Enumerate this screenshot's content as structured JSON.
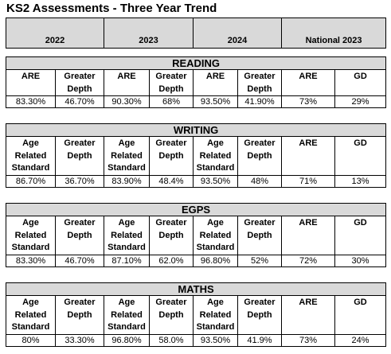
{
  "header": {
    "title": "KS2 Assessments - Three Year Trend",
    "columns": [
      "2022",
      "2023",
      "2024",
      "National 2023"
    ]
  },
  "sections": [
    {
      "title": "READING",
      "headers": [
        "ARE",
        "Greater Depth",
        "ARE",
        "Greater Depth",
        "ARE",
        "Greater Depth",
        "ARE",
        "GD"
      ],
      "values": [
        "83.30%",
        "46.70%",
        "90.30%",
        "68%",
        "93.50%",
        "41.90%",
        "73%",
        "29%"
      ]
    },
    {
      "title": "WRITING",
      "headers": [
        "Age Related Standard",
        "Greater Depth",
        "Age Related Standard",
        "Greater Depth",
        "Age Related Standard",
        "Greater Depth",
        "ARE",
        "GD"
      ],
      "values": [
        "86.70%",
        "36.70%",
        "83.90%",
        "48.4%",
        "93.50%",
        "48%",
        "71%",
        "13%"
      ]
    },
    {
      "title": "EGPS",
      "headers": [
        "Age Related Standard",
        "Greater Depth",
        "Age Related Standard",
        "Greater Depth",
        "Age Related Standard",
        "Greater Depth",
        "ARE",
        "GD"
      ],
      "values": [
        "83.30%",
        "46.70%",
        "87.10%",
        "62.0%",
        "96.80%",
        "52%",
        "72%",
        "30%"
      ]
    },
    {
      "title": "MATHS",
      "headers": [
        "Age Related Standard",
        "Greater Depth",
        "Age Related Standard",
        "Greater Depth",
        "Age Related Standard",
        "Greater Depth",
        "ARE",
        "GD"
      ],
      "values": [
        "80%",
        "33.30%",
        "96.80%",
        "58.0%",
        "93.50%",
        "41.9%",
        "73%",
        "24%"
      ]
    }
  ]
}
